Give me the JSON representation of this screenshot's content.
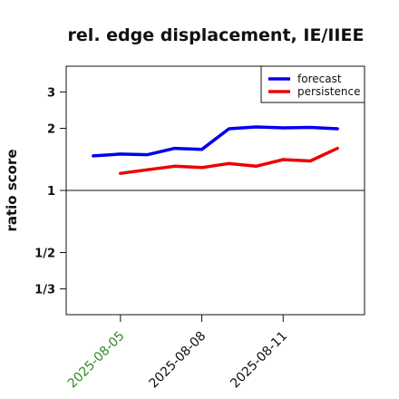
{
  "chart_data": {
    "type": "line",
    "title": "rel. edge displacement, IE/IIEE",
    "xlabel": "",
    "ylabel": "ratio score",
    "x": [
      "2025-08-04",
      "2025-08-05",
      "2025-08-06",
      "2025-08-07",
      "2025-08-08",
      "2025-08-09",
      "2025-08-10",
      "2025-08-11",
      "2025-08-12",
      "2025-08-13"
    ],
    "xlim": [
      "2025-08-03",
      "2025-08-14"
    ],
    "x_ticks": [
      {
        "date": "2025-08-05",
        "label": "2025-08-05",
        "color": "#2e8b22"
      },
      {
        "date": "2025-08-08",
        "label": "2025-08-08",
        "color": "#111111"
      },
      {
        "date": "2025-08-11",
        "label": "2025-08-11",
        "color": "#111111"
      }
    ],
    "y_scale": "log",
    "ylim": [
      0.25,
      4.0
    ],
    "y_ticks": [
      {
        "value": 0.3333,
        "label": "1/3"
      },
      {
        "value": 0.5,
        "label": "1/2"
      },
      {
        "value": 1,
        "label": "1"
      },
      {
        "value": 2,
        "label": "2"
      },
      {
        "value": 3,
        "label": "3"
      }
    ],
    "reference_line": 1,
    "grid": false,
    "legend_position": "top-right",
    "series": [
      {
        "name": "forecast",
        "color": "#0000ee",
        "values": [
          1.47,
          1.5,
          1.49,
          1.6,
          1.58,
          1.99,
          2.03,
          2.01,
          2.02,
          1.99
        ]
      },
      {
        "name": "persistence",
        "color": "#ee0000",
        "values": [
          null,
          1.21,
          1.26,
          1.31,
          1.29,
          1.35,
          1.31,
          1.41,
          1.39,
          1.6
        ]
      }
    ]
  }
}
